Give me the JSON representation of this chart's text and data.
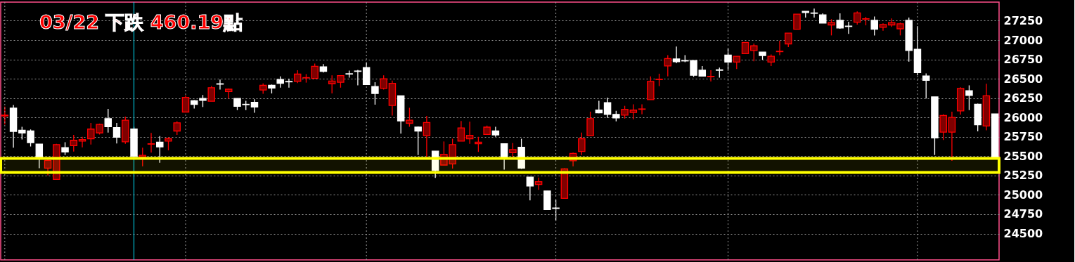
{
  "chart_data": {
    "type": "candlestick",
    "title": "03/22 下跌 460.19點",
    "categories": [
      null,
      null,
      null,
      null,
      null,
      null,
      null,
      null,
      null,
      null,
      null,
      null,
      null,
      null,
      null,
      null,
      null,
      null,
      null,
      null,
      null,
      null,
      null,
      null,
      null,
      null,
      null,
      null,
      null,
      null,
      null,
      null,
      null,
      null,
      null,
      null,
      null,
      null,
      null,
      null,
      null,
      null,
      null,
      null,
      null,
      null,
      null,
      null,
      null,
      null,
      null,
      null,
      null,
      null,
      null,
      null,
      null,
      null,
      null,
      null,
      null,
      null,
      null,
      null,
      null,
      null,
      null,
      null,
      null,
      null,
      null,
      null,
      null,
      null,
      null,
      null,
      null,
      null,
      null,
      null,
      null,
      null,
      null,
      null,
      null,
      null,
      null,
      null,
      null,
      null,
      null,
      null,
      null,
      null,
      null,
      null,
      null,
      null,
      null,
      null,
      null,
      null,
      null,
      null,
      null,
      null,
      null,
      null,
      null,
      null,
      null,
      null,
      null,
      null,
      null,
      null
    ],
    "ohlc": [
      [
        26020,
        26140,
        25910,
        26030
      ],
      [
        26120,
        26160,
        25610,
        25820
      ],
      [
        25835,
        25880,
        25715,
        25800
      ],
      [
        25825,
        25845,
        25625,
        25675
      ],
      [
        25655,
        25655,
        25345,
        25470
      ],
      [
        25345,
        25465,
        25250,
        25445
      ],
      [
        25200,
        25660,
        25200,
        25650
      ],
      [
        25610,
        25680,
        25515,
        25555
      ],
      [
        25635,
        25775,
        25560,
        25705
      ],
      [
        25695,
        25750,
        25615,
        25715
      ],
      [
        25725,
        25930,
        25650,
        25850
      ],
      [
        25800,
        25920,
        25780,
        25910
      ],
      [
        25985,
        26110,
        25805,
        25880
      ],
      [
        25870,
        25930,
        25665,
        25745
      ],
      [
        25685,
        26010,
        25660,
        25965
      ],
      [
        25850,
        25880,
        25495,
        25495
      ],
      [
        25490,
        25610,
        25370,
        25510
      ],
      [
        25655,
        25800,
        25545,
        25660
      ],
      [
        25680,
        25760,
        25415,
        25620
      ],
      [
        25695,
        25745,
        25575,
        25725
      ],
      [
        25825,
        25950,
        25775,
        25930
      ],
      [
        26070,
        26285,
        26070,
        26260
      ],
      [
        26215,
        26225,
        26115,
        26170
      ],
      [
        26245,
        26290,
        26135,
        26220
      ],
      [
        26210,
        26405,
        26210,
        26385
      ],
      [
        26435,
        26490,
        26360,
        26430
      ],
      [
        26335,
        26375,
        26245,
        26365
      ],
      [
        26245,
        26245,
        26095,
        26145
      ],
      [
        26170,
        26215,
        26095,
        26165
      ],
      [
        26195,
        26235,
        26060,
        26135
      ],
      [
        26355,
        26440,
        26305,
        26415
      ],
      [
        26415,
        26425,
        26310,
        26380
      ],
      [
        26490,
        26530,
        26385,
        26440
      ],
      [
        26465,
        26500,
        26385,
        26460
      ],
      [
        26465,
        26610,
        26445,
        26560
      ],
      [
        26510,
        26560,
        26450,
        26515
      ],
      [
        26505,
        26695,
        26505,
        26660
      ],
      [
        26655,
        26690,
        26580,
        26595
      ],
      [
        26435,
        26545,
        26310,
        26470
      ],
      [
        26455,
        26540,
        26385,
        26540
      ],
      [
        26565,
        26605,
        26515,
        26560
      ],
      [
        26600,
        26615,
        26415,
        26595
      ],
      [
        26645,
        26705,
        26425,
        26425
      ],
      [
        26400,
        26455,
        26165,
        26310
      ],
      [
        26375,
        26545,
        26360,
        26500
      ],
      [
        26155,
        26475,
        26025,
        26440
      ],
      [
        26280,
        26280,
        25790,
        25955
      ],
      [
        25925,
        26125,
        25880,
        25965
      ],
      [
        25875,
        25885,
        25515,
        25825
      ],
      [
        25765,
        26020,
        25490,
        25935
      ],
      [
        25565,
        25565,
        25220,
        25315
      ],
      [
        25385,
        25690,
        25385,
        25525
      ],
      [
        25400,
        25725,
        25340,
        25650
      ],
      [
        25695,
        25955,
        25695,
        25865
      ],
      [
        25725,
        25945,
        25660,
        25770
      ],
      [
        25660,
        25750,
        25555,
        25680
      ],
      [
        25780,
        25895,
        25775,
        25875
      ],
      [
        25825,
        25880,
        25750,
        25775
      ],
      [
        25660,
        25660,
        25325,
        25490
      ],
      [
        25545,
        25670,
        25490,
        25585
      ],
      [
        25615,
        25725,
        25335,
        25345
      ],
      [
        25230,
        25230,
        24930,
        25115
      ],
      [
        25135,
        25225,
        25065,
        25170
      ],
      [
        25050,
        25050,
        24810,
        24810
      ],
      [
        24830,
        24935,
        24670,
        24825
      ],
      [
        24955,
        25345,
        24955,
        25335
      ],
      [
        25440,
        25545,
        25370,
        25535
      ],
      [
        25560,
        25805,
        25515,
        25725
      ],
      [
        25765,
        26075,
        25765,
        25985
      ],
      [
        26095,
        26215,
        26055,
        26060
      ],
      [
        26190,
        26255,
        25995,
        26040
      ],
      [
        26040,
        26085,
        25950,
        25995
      ],
      [
        26030,
        26150,
        25985,
        26105
      ],
      [
        26065,
        26170,
        25975,
        26095
      ],
      [
        26105,
        26170,
        26040,
        26110
      ],
      [
        26230,
        26530,
        26230,
        26465
      ],
      [
        26490,
        26565,
        26405,
        26495
      ],
      [
        26665,
        26805,
        26530,
        26760
      ],
      [
        26755,
        26915,
        26700,
        26720
      ],
      [
        26735,
        26805,
        26715,
        26730
      ],
      [
        26735,
        26735,
        26525,
        26545
      ],
      [
        26610,
        26665,
        26535,
        26535
      ],
      [
        26525,
        26610,
        26465,
        26530
      ],
      [
        26615,
        26645,
        26515,
        26610
      ],
      [
        26805,
        26895,
        26605,
        26715
      ],
      [
        26715,
        26790,
        26625,
        26790
      ],
      [
        26825,
        26970,
        26825,
        26970
      ],
      [
        26865,
        26955,
        26725,
        26925
      ],
      [
        26845,
        26845,
        26745,
        26800
      ],
      [
        26715,
        26815,
        26665,
        26790
      ],
      [
        26850,
        26990,
        26805,
        26855
      ],
      [
        26950,
        27090,
        26910,
        27090
      ],
      [
        27140,
        27335,
        27140,
        27335
      ],
      [
        27370,
        27370,
        27290,
        27355
      ],
      [
        27350,
        27405,
        27290,
        27345
      ],
      [
        27325,
        27345,
        27220,
        27220
      ],
      [
        27195,
        27270,
        27060,
        27225
      ],
      [
        27255,
        27345,
        27145,
        27155
      ],
      [
        27180,
        27235,
        27080,
        27175
      ],
      [
        27230,
        27370,
        27200,
        27350
      ],
      [
        27270,
        27300,
        27190,
        27275
      ],
      [
        27255,
        27305,
        27060,
        27140
      ],
      [
        27165,
        27215,
        27120,
        27200
      ],
      [
        27195,
        27280,
        27170,
        27225
      ],
      [
        27145,
        27225,
        27060,
        27210
      ],
      [
        27255,
        27290,
        26720,
        26865
      ],
      [
        26880,
        27180,
        26545,
        26580
      ],
      [
        26535,
        26570,
        26245,
        26480
      ],
      [
        26265,
        26265,
        25515,
        25735
      ],
      [
        25810,
        26040,
        25710,
        26025
      ],
      [
        25810,
        26075,
        25440,
        26000
      ],
      [
        26085,
        26390,
        26035,
        26375
      ],
      [
        26345,
        26415,
        26095,
        26285
      ],
      [
        26170,
        26180,
        25820,
        25905
      ],
      [
        25890,
        26435,
        25835,
        26280
      ],
      [
        26045,
        26045,
        25490,
        25490
      ]
    ],
    "colors": [
      "#ff0000",
      "#ffffff",
      "#ffffff",
      "#ffffff",
      "#ffffff",
      "#ff0000",
      "#ff0000",
      "#ffffff",
      "#ff0000",
      "#ff0000",
      "#ff0000",
      "#ff0000",
      "#ffffff",
      "#ffffff",
      "#ff0000",
      "#ffffff",
      "#ff0000",
      "#ff0000",
      "#ffffff",
      "#ff0000",
      "#ff0000",
      "#ff0000",
      "#ffffff",
      "#ffffff",
      "#ff0000",
      "#ffffff",
      "#ff0000",
      "#ffffff",
      "#ffffff",
      "#ffffff",
      "#ff0000",
      "#ffffff",
      "#ffffff",
      "#ffffff",
      "#ff0000",
      "#ff0000",
      "#ff0000",
      "#ffffff",
      "#ff0000",
      "#ff0000",
      "#ffffff",
      "#ffffff",
      "#ffffff",
      "#ffffff",
      "#ff0000",
      "#ff0000",
      "#ffffff",
      "#ff0000",
      "#ffffff",
      "#ff0000",
      "#ffffff",
      "#ff0000",
      "#ff0000",
      "#ff0000",
      "#ff0000",
      "#ff0000",
      "#ff0000",
      "#ffffff",
      "#ffffff",
      "#ff0000",
      "#ffffff",
      "#ffffff",
      "#ff0000",
      "#ffffff",
      "#ffffff",
      "#ff0000",
      "#ff0000",
      "#ff0000",
      "#ff0000",
      "#ffffff",
      "#ffffff",
      "#ffffff",
      "#ff0000",
      "#ff0000",
      "#ff0000",
      "#ff0000",
      "#ff0000",
      "#ff0000",
      "#ffffff",
      "#ffffff",
      "#ffffff",
      "#ffffff",
      "#ff0000",
      "#ffffff",
      "#ffffff",
      "#ff0000",
      "#ff0000",
      "#ff0000",
      "#ffffff",
      "#ff0000",
      "#ff0000",
      "#ff0000",
      "#ff0000",
      "#ffffff",
      "#ffffff",
      "#ffffff",
      "#ff0000",
      "#ffffff",
      "#ffffff",
      "#ff0000",
      "#ff0000",
      "#ffffff",
      "#ff0000",
      "#ff0000",
      "#ff0000",
      "#ffffff",
      "#ffffff",
      "#ffffff",
      "#ffffff",
      "#ff0000",
      "#ff0000",
      "#ff0000",
      "#ffffff",
      "#ffffff",
      "#ff0000",
      "#ffffff"
    ],
    "ylim": [
      24160,
      27490
    ],
    "yticks": [
      24500,
      24750,
      25000,
      25250,
      25500,
      25750,
      26000,
      26250,
      26500,
      26750,
      27000,
      27250
    ],
    "bands": [
      {
        "axis": "y",
        "from": 25290,
        "to": 25470,
        "color": "#ffff00"
      }
    ],
    "grid": "y",
    "tick_labels": "y"
  }
}
